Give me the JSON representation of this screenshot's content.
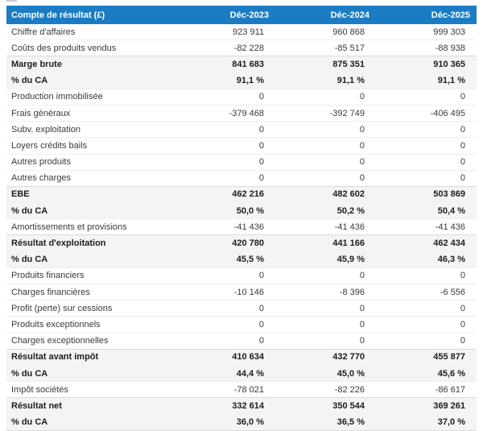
{
  "table": {
    "title_column": "Compte de résultat (£)",
    "period_columns": [
      "Déc-2023",
      "Déc-2024",
      "Déc-2025"
    ],
    "colors": {
      "header_bg": "#1b7cc4",
      "header_text": "#ffffff",
      "section_row_bg": "#f4f4f5"
    },
    "rows": [
      {
        "label": "Chiffre d'affaires",
        "values": [
          "923 911",
          "960 868",
          "999 303"
        ],
        "emphasis": false
      },
      {
        "label": "Coûts des produits vendus",
        "values": [
          "-82 228",
          "-85 517",
          "-88 938"
        ],
        "emphasis": false
      },
      {
        "label": "Marge brute",
        "values": [
          "841 683",
          "875 351",
          "910 365"
        ],
        "emphasis": true
      },
      {
        "label": "% du CA",
        "values": [
          "91,1 %",
          "91,1 %",
          "91,1 %"
        ],
        "emphasis": true
      },
      {
        "label": "Production immobilisée",
        "values": [
          "0",
          "0",
          "0"
        ],
        "emphasis": false
      },
      {
        "label": "Frais généraux",
        "values": [
          "-379 468",
          "-392 749",
          "-406 495"
        ],
        "emphasis": false
      },
      {
        "label": "Subv. exploitation",
        "values": [
          "0",
          "0",
          "0"
        ],
        "emphasis": false
      },
      {
        "label": "Loyers crédits bails",
        "values": [
          "0",
          "0",
          "0"
        ],
        "emphasis": false
      },
      {
        "label": "Autres produits",
        "values": [
          "0",
          "0",
          "0"
        ],
        "emphasis": false
      },
      {
        "label": "Autres charges",
        "values": [
          "0",
          "0",
          "0"
        ],
        "emphasis": false
      },
      {
        "label": "EBE",
        "values": [
          "462 216",
          "482 602",
          "503 869"
        ],
        "emphasis": true
      },
      {
        "label": "% du CA",
        "values": [
          "50,0 %",
          "50,2 %",
          "50,4 %"
        ],
        "emphasis": true
      },
      {
        "label": "Amortissements et provisions",
        "values": [
          "-41 436",
          "-41 436",
          "-41 436"
        ],
        "emphasis": false
      },
      {
        "label": "Résultat d'exploitation",
        "values": [
          "420 780",
          "441 166",
          "462 434"
        ],
        "emphasis": true
      },
      {
        "label": "% du CA",
        "values": [
          "45,5 %",
          "45,9 %",
          "46,3 %"
        ],
        "emphasis": true
      },
      {
        "label": "Produits financiers",
        "values": [
          "0",
          "0",
          "0"
        ],
        "emphasis": false
      },
      {
        "label": "Charges financières",
        "values": [
          "-10 146",
          "-8 396",
          "-6 556"
        ],
        "emphasis": false
      },
      {
        "label": "Profit (perte) sur cessions",
        "values": [
          "0",
          "0",
          "0"
        ],
        "emphasis": false
      },
      {
        "label": "Produits exceptionnels",
        "values": [
          "0",
          "0",
          "0"
        ],
        "emphasis": false
      },
      {
        "label": "Charges exceptionnelles",
        "values": [
          "0",
          "0",
          "0"
        ],
        "emphasis": false
      },
      {
        "label": "Résultat avant impôt",
        "values": [
          "410 634",
          "432 770",
          "455 877"
        ],
        "emphasis": true
      },
      {
        "label": "% du CA",
        "values": [
          "44,4 %",
          "45,0 %",
          "45,6 %"
        ],
        "emphasis": true
      },
      {
        "label": "Impôt sociétés",
        "values": [
          "-78 021",
          "-82 226",
          "-86 617"
        ],
        "emphasis": false
      },
      {
        "label": "Résultat net",
        "values": [
          "332 614",
          "350 544",
          "369 261"
        ],
        "emphasis": true
      },
      {
        "label": "% du CA",
        "values": [
          "36,0 %",
          "36,5 %",
          "37,0 %"
        ],
        "emphasis": true
      }
    ]
  }
}
